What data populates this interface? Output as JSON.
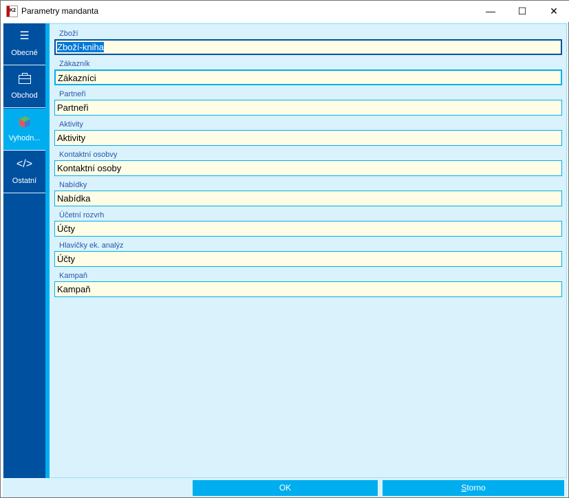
{
  "window": {
    "title": "Parametry mandanta",
    "logo": "K2",
    "minimize": "—",
    "maximize": "☐",
    "close": "✕"
  },
  "sidebar": {
    "items": [
      {
        "label": "Obecné",
        "icon": "list-icon",
        "glyph": "☰"
      },
      {
        "label": "Obchod",
        "icon": "briefcase-icon",
        "glyph": "💼"
      },
      {
        "label": "Vyhodn...",
        "icon": "cube-icon",
        "glyph": ""
      },
      {
        "label": "Ostatní",
        "icon": "code-icon",
        "glyph": "</>"
      }
    ],
    "selected": 2
  },
  "fields": [
    {
      "label": "Zboží",
      "value": "Zboží-kniha"
    },
    {
      "label": "Zákazník",
      "value": "Zákazníci"
    },
    {
      "label": "Partneři",
      "value": "Partneři"
    },
    {
      "label": "Aktivity",
      "value": "Aktivity"
    },
    {
      "label": "Kontaktní osobvy",
      "value": "Kontaktní osoby"
    },
    {
      "label": "Nabídky",
      "value": "Nabídka"
    },
    {
      "label": "Účetní rozvrh",
      "value": "Účty"
    },
    {
      "label": "Hlavičky ek. analýz",
      "value": "Účty"
    },
    {
      "label": "Kampaň",
      "value": "Kampaň"
    }
  ],
  "buttons": {
    "ok": "OK",
    "storno_underline": "S",
    "storno_rest": "torno"
  },
  "colors": {
    "sidebar": "#0050a0",
    "accent": "#00aeef",
    "content": "#d9f2fc",
    "input": "#fffde6"
  }
}
